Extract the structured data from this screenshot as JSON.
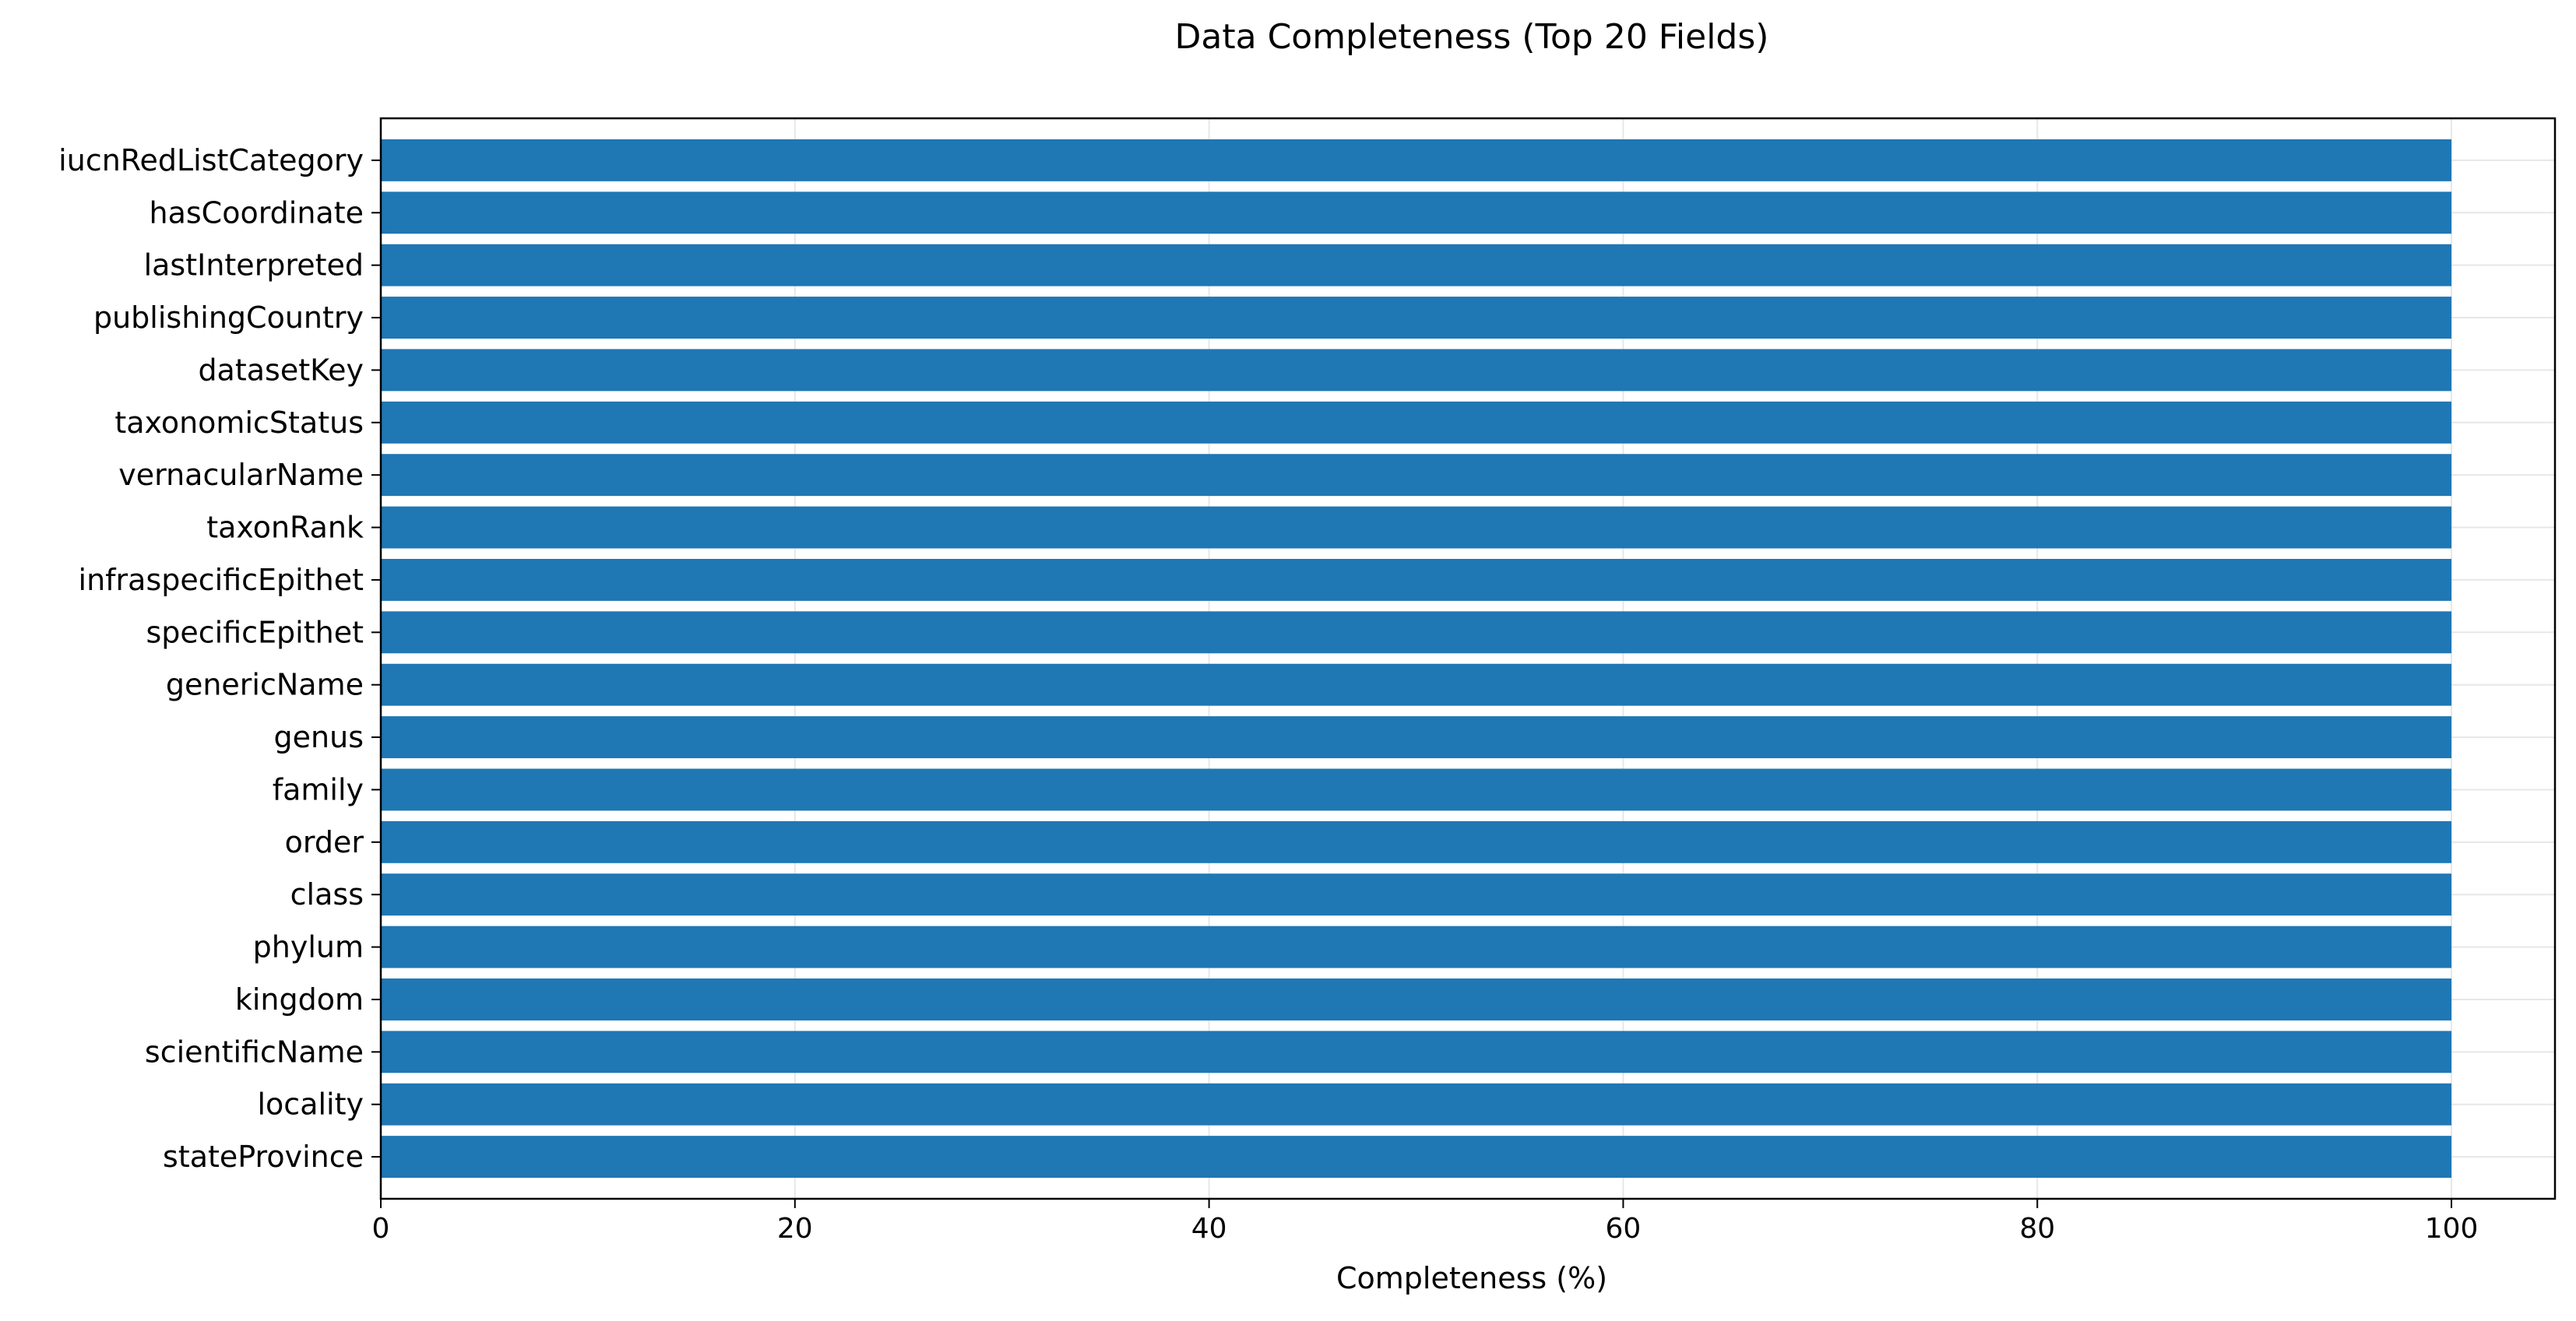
{
  "chart_data": {
    "type": "bar",
    "orientation": "horizontal",
    "title": "Data Completeness (Top 20 Fields)",
    "xlabel": "Completeness (%)",
    "ylabel": "",
    "xlim": [
      0,
      105
    ],
    "xticks": [
      0,
      20,
      40,
      60,
      80,
      100
    ],
    "grid": true,
    "bar_color": "#1f77b4",
    "categories": [
      "iucnRedListCategory",
      "hasCoordinate",
      "lastInterpreted",
      "publishingCountry",
      "datasetKey",
      "taxonomicStatus",
      "vernacularName",
      "taxonRank",
      "infraspecificEpithet",
      "specificEpithet",
      "genericName",
      "genus",
      "family",
      "order",
      "class",
      "phylum",
      "kingdom",
      "scientificName",
      "locality",
      "stateProvince"
    ],
    "values": [
      100,
      100,
      100,
      100,
      100,
      100,
      100,
      100,
      100,
      100,
      100,
      100,
      100,
      100,
      100,
      100,
      100,
      100,
      100,
      100
    ]
  }
}
